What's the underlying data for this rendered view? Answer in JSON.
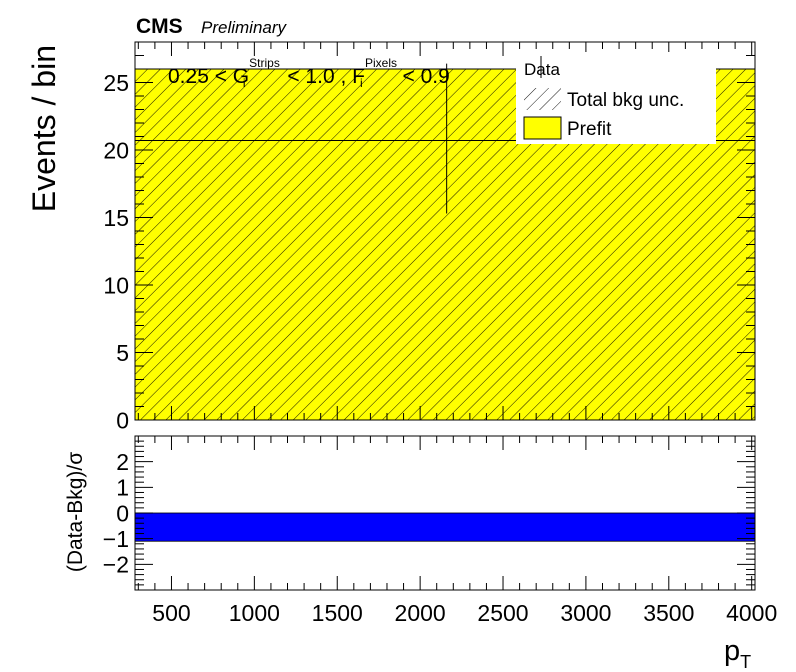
{
  "header": {
    "experiment": "CMS",
    "status": "Preliminary"
  },
  "chart_data": [
    {
      "type": "bar",
      "panel": "main",
      "ylabel": "Events / bin",
      "xlim": [
        280,
        4020
      ],
      "ylim": [
        0,
        28
      ],
      "yticks": [
        0,
        5,
        10,
        15,
        20,
        25
      ],
      "bins": [
        {
          "x_low": 280,
          "x_high": 4020,
          "prefit": 26,
          "unc_low": 0,
          "unc_high": 26
        }
      ],
      "data_points": [
        {
          "x": 2160,
          "y": 20.7,
          "err_low": 5.4,
          "err_high": 5.7,
          "x_low": 280,
          "x_high": 4020
        }
      ],
      "annotation": {
        "parts": [
          {
            "text": "0.25 < G",
            "sup": "Strips",
            "sub": "i"
          },
          {
            "text": " < 1.0 , F",
            "sup": "Pixels",
            "sub": "i"
          },
          {
            "text": " < 0.9"
          }
        ]
      },
      "legend": {
        "placement": "top-right",
        "entries": [
          {
            "label": "Data",
            "style": "marker"
          },
          {
            "label": "Total bkg unc.",
            "style": "hatch"
          },
          {
            "label": "Prefit",
            "style": "fill",
            "color": "#ffff00"
          }
        ]
      },
      "colors": {
        "prefit": "#ffff00",
        "hatch": "#000000"
      }
    },
    {
      "type": "bar",
      "panel": "ratio",
      "ylabel": "(Data-Bkg)/σ",
      "xlabel": "p",
      "xlabel_sub": "T",
      "xlim": [
        280,
        4020
      ],
      "ylim": [
        -3,
        3
      ],
      "yticks": [
        -2,
        -1,
        0,
        1,
        2
      ],
      "xticks": [
        500,
        1000,
        1500,
        2000,
        2500,
        3000,
        3500,
        4000
      ],
      "bins": [
        {
          "x_low": 280,
          "x_high": 4020,
          "low": -1.1,
          "high": 0
        }
      ],
      "colors": {
        "band": "#0000ff"
      }
    }
  ]
}
